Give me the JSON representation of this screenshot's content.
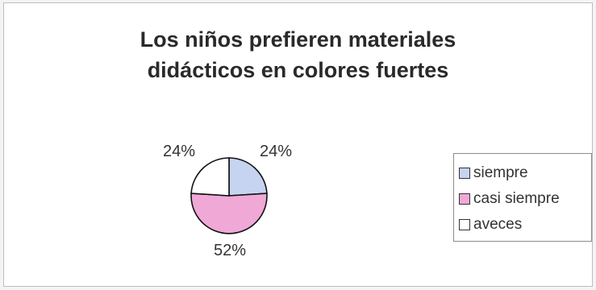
{
  "chart_data": {
    "type": "pie",
    "title": [
      "Los niños prefieren  materiales",
      "didácticos en colores fuertes"
    ],
    "categories": [
      "siempre",
      "casi siempre",
      "aveces"
    ],
    "values": [
      24,
      52,
      24
    ],
    "data_labels": [
      "24%",
      "52%",
      "24%"
    ],
    "colors": [
      "#c6d4f2",
      "#f0a8d6",
      "#ffffff"
    ],
    "legend_position": "right"
  }
}
